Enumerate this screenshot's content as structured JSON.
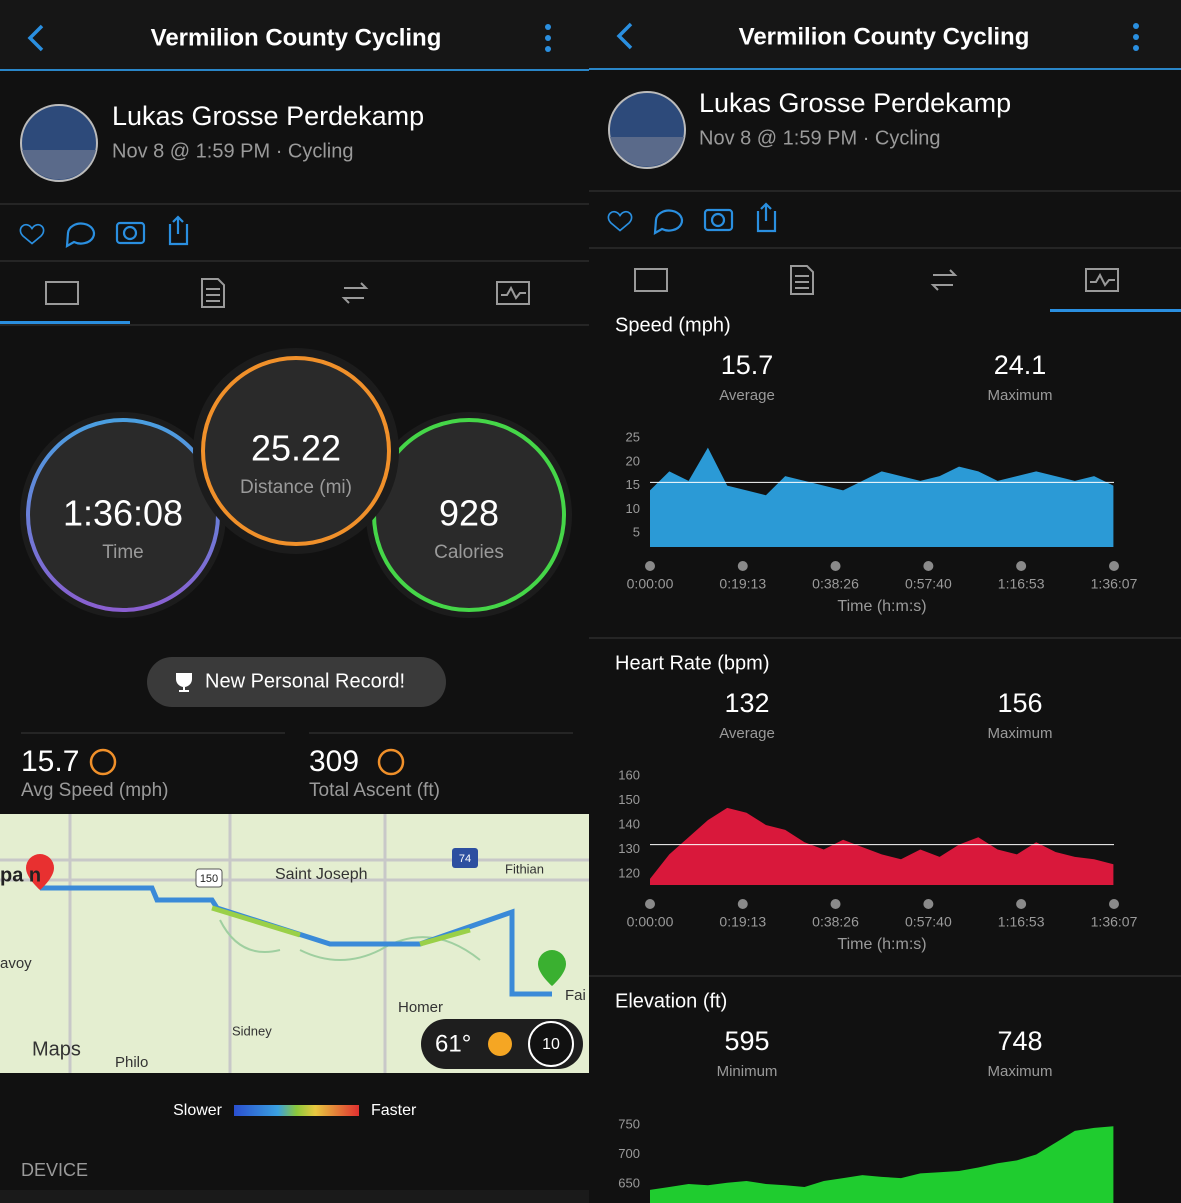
{
  "left": {
    "header": {
      "title": "Vermilion County Cycling"
    },
    "profile": {
      "name": "Lukas Grosse Perdekamp",
      "meta": "Nov 8 @ 1:59 PM · Cycling"
    },
    "summary": {
      "time": {
        "value": "1:36:08",
        "label": "Time"
      },
      "distance": {
        "value": "25.22",
        "label": "Distance (mi)"
      },
      "calories": {
        "value": "928",
        "label": "Calories"
      }
    },
    "record": "New Personal Record!",
    "stats": [
      {
        "value": "15.7",
        "label": "Avg Speed (mph)"
      },
      {
        "value": "309",
        "label": "Total Ascent (ft)"
      }
    ],
    "map": {
      "labels": [
        "Saint Joseph",
        "Fithian",
        "Homer",
        "Sidney",
        "Philo",
        "avoy",
        "Fai",
        "pa n"
      ],
      "shields": [
        "150",
        "74"
      ],
      "brand": "Maps",
      "temperature": "61°",
      "wind": "10"
    },
    "legend": {
      "slower": "Slower",
      "faster": "Faster"
    },
    "section": "DEVICE"
  },
  "right": {
    "header": {
      "title": "Vermilion County Cycling"
    },
    "profile": {
      "name": "Lukas Grosse Perdekamp",
      "meta": "Nov 8 @ 1:59 PM · Cycling"
    },
    "charts": [
      {
        "type": "area",
        "title": "Speed (mph)",
        "stats": [
          {
            "value": 15.7,
            "label": "Average"
          },
          {
            "value": 24.1,
            "label": "Maximum"
          }
        ],
        "color": "#2b9ad6",
        "reference": true,
        "x": [
          0,
          4,
          8,
          12,
          16,
          20,
          24,
          28,
          32,
          36,
          40,
          44,
          48,
          52,
          56,
          60,
          64,
          68,
          72,
          76,
          80,
          84,
          88,
          92,
          96
        ],
        "values": [
          14,
          18,
          16,
          23,
          15,
          14,
          13,
          17,
          16,
          15,
          14,
          16,
          18,
          17,
          16,
          17,
          19,
          18,
          16,
          17,
          18,
          17,
          16,
          17,
          15
        ],
        "xlim": [
          0,
          96.117
        ],
        "xticks": [
          {
            "value": 0,
            "label": "0:00:00"
          },
          {
            "value": 19.217,
            "label": "0:19:13"
          },
          {
            "value": 38.433,
            "label": "0:38:26"
          },
          {
            "value": 57.667,
            "label": "0:57:40"
          },
          {
            "value": 76.883,
            "label": "1:16:53"
          },
          {
            "value": 96.117,
            "label": "1:36:07"
          }
        ],
        "ylim": [
          2.1,
          26.7
        ],
        "yticks": [
          5,
          10,
          15,
          20,
          25
        ],
        "xlabel": "Time (h:m:s)"
      },
      {
        "type": "area",
        "title": "Heart Rate (bpm)",
        "stats": [
          {
            "value": 132,
            "label": "Average"
          },
          {
            "value": 156,
            "label": "Maximum"
          }
        ],
        "color": "#d9183b",
        "reference": true,
        "x": [
          0,
          4,
          8,
          12,
          16,
          20,
          24,
          28,
          32,
          36,
          40,
          44,
          48,
          52,
          56,
          60,
          64,
          68,
          72,
          76,
          80,
          84,
          88,
          92,
          96
        ],
        "values": [
          118,
          128,
          135,
          142,
          147,
          145,
          140,
          138,
          133,
          130,
          134,
          131,
          128,
          126,
          130,
          127,
          132,
          135,
          130,
          128,
          133,
          129,
          127,
          126,
          124
        ],
        "xlim": [
          0,
          96.117
        ],
        "xticks": [
          {
            "value": 0,
            "label": "0:00:00"
          },
          {
            "value": 19.217,
            "label": "0:19:13"
          },
          {
            "value": 38.433,
            "label": "0:38:26"
          },
          {
            "value": 57.667,
            "label": "0:57:40"
          },
          {
            "value": 76.883,
            "label": "1:16:53"
          },
          {
            "value": 96.117,
            "label": "1:36:07"
          }
        ],
        "ylim": [
          115.5,
          163.3
        ],
        "yticks": [
          120,
          130,
          140,
          150,
          160
        ],
        "xlabel": "Time (h:m:s)"
      },
      {
        "type": "area",
        "title": "Elevation (ft)",
        "stats": [
          {
            "value": 595,
            "label": "Minimum"
          },
          {
            "value": 748,
            "label": "Maximum"
          }
        ],
        "color": "#1fcc2f",
        "reference": false,
        "x": [
          0,
          4,
          8,
          12,
          16,
          20,
          24,
          28,
          32,
          36,
          40,
          44,
          48,
          52,
          56,
          60,
          64,
          68,
          72,
          76,
          80,
          84,
          88,
          92,
          96
        ],
        "values": [
          640,
          645,
          650,
          648,
          652,
          655,
          650,
          648,
          645,
          655,
          660,
          665,
          662,
          660,
          668,
          670,
          672,
          678,
          685,
          690,
          700,
          720,
          740,
          745,
          748
        ],
        "xlim": [
          0,
          96.117
        ],
        "ylim": [
          583.9,
          782.2
        ],
        "yticks": [
          650,
          700,
          750
        ]
      }
    ]
  }
}
